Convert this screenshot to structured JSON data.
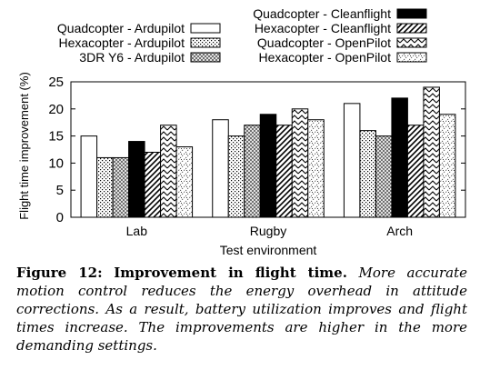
{
  "figure_label": "Figure 12:",
  "figure_title": "Improvement in flight time.",
  "caption_text": "More accurate motion control reduces the energy overhead in attitude corrections. As a result, battery utilization improves and flight times increase. The improvements are higher in the more demanding settings.",
  "chart_data": {
    "type": "bar",
    "xlabel": "Test environment",
    "ylabel": "Flight time improvement (%)",
    "ylim": [
      0,
      25
    ],
    "yticks": [
      0,
      5,
      10,
      15,
      20,
      25
    ],
    "categories": [
      "Lab",
      "Rugby",
      "Arch"
    ],
    "grid": false,
    "legend_position": "top",
    "series": [
      {
        "name": "Quadcopter - Ardupilot",
        "pattern": "white",
        "values": [
          15,
          18,
          21
        ]
      },
      {
        "name": "Hexacopter - Ardupilot",
        "pattern": "dots",
        "values": [
          11,
          15,
          16
        ]
      },
      {
        "name": "3DR Y6 - Ardupilot",
        "pattern": "crosshatch",
        "values": [
          11,
          17,
          15
        ]
      },
      {
        "name": "Quadcopter - Cleanflight",
        "pattern": "black",
        "values": [
          14,
          19,
          22
        ]
      },
      {
        "name": "Hexacopter - Cleanflight",
        "pattern": "diagonal",
        "values": [
          12,
          17,
          17
        ]
      },
      {
        "name": "Quadcopter - OpenPilot",
        "pattern": "zigzag",
        "values": [
          17,
          20,
          24
        ]
      },
      {
        "name": "Hexacopter - OpenPilot",
        "pattern": "sparse",
        "values": [
          13,
          18,
          19
        ]
      }
    ]
  }
}
